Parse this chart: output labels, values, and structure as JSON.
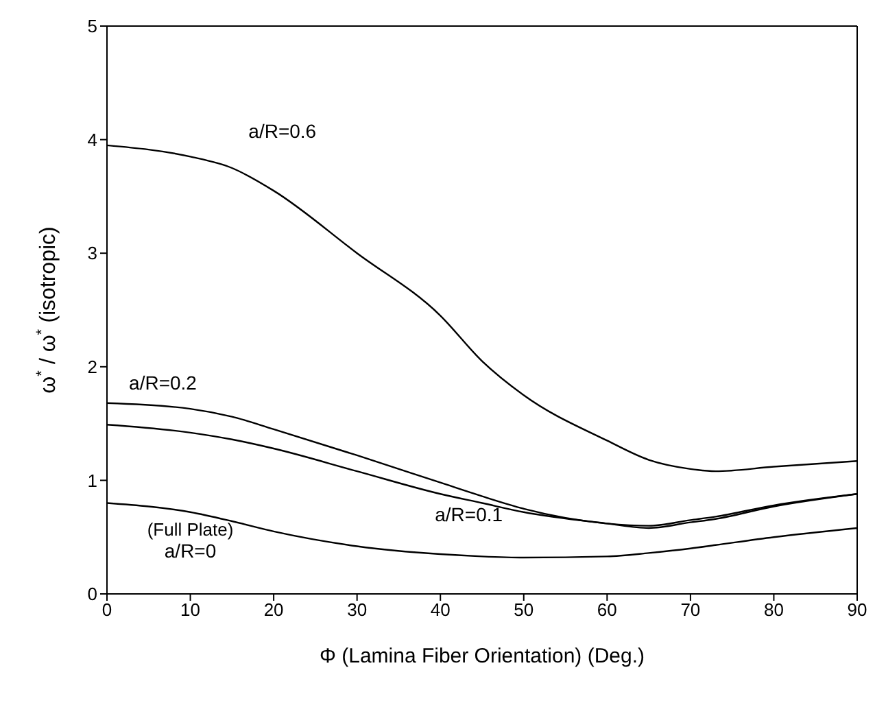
{
  "chart_data": {
    "type": "line",
    "xlabel": "Φ (Lamina Fiber Orientation) (Deg.)",
    "ylabel": "ω$^{*}$ / ω$^{*}$ (isotropic)",
    "x": [
      0,
      10,
      15,
      20,
      30,
      40,
      45,
      50,
      60,
      65,
      70,
      73,
      80,
      90
    ],
    "series": [
      {
        "name": "a/R=0.6",
        "color": "#000000",
        "values": [
          3.95,
          3.85,
          3.75,
          3.55,
          3.0,
          2.45,
          2.05,
          1.75,
          1.35,
          1.18,
          1.1,
          1.08,
          1.12,
          1.17
        ]
      },
      {
        "name": "a/R=0.2",
        "color": "#000000",
        "values": [
          1.68,
          1.63,
          1.56,
          1.45,
          1.22,
          0.98,
          0.86,
          0.75,
          0.62,
          0.6,
          0.65,
          0.68,
          0.78,
          0.88
        ]
      },
      {
        "name": "a/R=0.1",
        "color": "#000000",
        "values": [
          1.49,
          1.42,
          1.36,
          1.28,
          1.08,
          0.88,
          0.8,
          0.72,
          0.62,
          0.58,
          0.63,
          0.66,
          0.77,
          0.88
        ]
      },
      {
        "name": "a/R=0",
        "color": "#000000",
        "values": [
          0.8,
          0.72,
          0.64,
          0.55,
          0.42,
          0.35,
          0.33,
          0.32,
          0.33,
          0.36,
          0.4,
          0.43,
          0.5,
          0.58
        ]
      }
    ],
    "annotations": [
      "(Full Plate)"
    ],
    "xlim": [
      0,
      90
    ],
    "xticks": [
      0,
      10,
      20,
      30,
      40,
      50,
      60,
      70,
      80,
      90
    ],
    "ylim": [
      0,
      5
    ],
    "yticks": [
      0,
      1,
      2,
      3,
      4,
      5
    ],
    "grid": false,
    "marker": "none",
    "line_style": "solid"
  }
}
